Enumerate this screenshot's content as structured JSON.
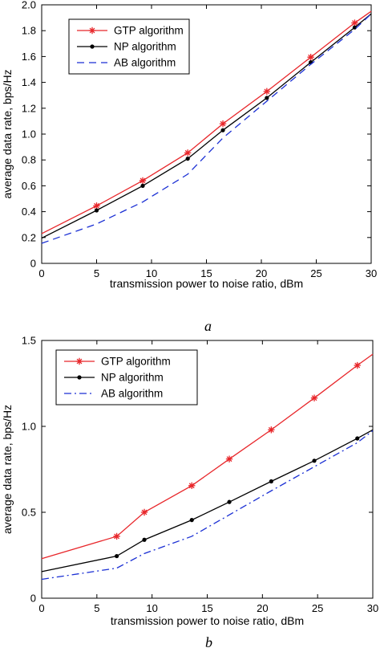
{
  "chart_data": [
    {
      "type": "line",
      "panel_label": "a",
      "xlabel": "transmission power to noise ratio, dBm",
      "ylabel": "average data rate, bps/Hz",
      "xlim": [
        0,
        30
      ],
      "ylim": [
        0,
        2.0
      ],
      "x_ticks": [
        0,
        5,
        10,
        15,
        20,
        25,
        30
      ],
      "x_tick_labels": [
        "0",
        "5",
        "10",
        "15",
        "20",
        "25",
        "30"
      ],
      "y_ticks": [
        0,
        0.2,
        0.4,
        0.6,
        0.8,
        1.0,
        1.2,
        1.4,
        1.6,
        1.8,
        2.0
      ],
      "y_tick_labels": [
        "0",
        "0.2",
        "0.4",
        "0.6",
        "0.8",
        "1.0",
        "1.2",
        "1.4",
        "1.6",
        "1.8",
        "2.0"
      ],
      "grid": false,
      "legend_position": "top-left",
      "series": [
        {
          "name": "GTP algorithm",
          "color": "#e8262a",
          "marker": "star",
          "dash": "solid",
          "x": [
            0,
            5,
            9.2,
            13.3,
            16.5,
            20.5,
            24.5,
            28.5,
            30
          ],
          "y": [
            0.23,
            0.445,
            0.64,
            0.855,
            1.08,
            1.33,
            1.595,
            1.86,
            1.95
          ]
        },
        {
          "name": "NP algorithm",
          "color": "#000000",
          "marker": "dot",
          "dash": "solid",
          "x": [
            0,
            5,
            9.2,
            13.3,
            16.5,
            20.5,
            24.5,
            28.5,
            30
          ],
          "y": [
            0.195,
            0.41,
            0.6,
            0.81,
            1.03,
            1.28,
            1.555,
            1.825,
            1.93
          ]
        },
        {
          "name": "AB algorithm",
          "color": "#1a2fd4",
          "marker": "none",
          "dash": "dashed",
          "x": [
            0,
            5,
            9.2,
            13.3,
            16.5,
            20.5,
            24.5,
            28.5,
            30
          ],
          "y": [
            0.155,
            0.305,
            0.475,
            0.69,
            0.97,
            1.255,
            1.54,
            1.81,
            1.93
          ]
        }
      ]
    },
    {
      "type": "line",
      "panel_label": "b",
      "xlabel": "transmission power to noise ratio, dBm",
      "ylabel": "average data rate, bps/Hz",
      "xlim": [
        0,
        30
      ],
      "ylim": [
        0,
        1.5
      ],
      "x_ticks": [
        0,
        5,
        10,
        15,
        20,
        25,
        30
      ],
      "x_tick_labels": [
        "0",
        "5",
        "10",
        "15",
        "20",
        "25",
        "30"
      ],
      "y_ticks": [
        0,
        0.5,
        1.0,
        1.5
      ],
      "y_tick_labels": [
        "0",
        "0.5",
        "1.0",
        "1.5"
      ],
      "grid": false,
      "legend_position": "top-left",
      "series": [
        {
          "name": "GTP algorithm",
          "color": "#e8262a",
          "marker": "star",
          "dash": "solid",
          "x": [
            0,
            6.8,
            9.3,
            13.6,
            17,
            20.8,
            24.7,
            28.6,
            30
          ],
          "y": [
            0.23,
            0.36,
            0.5,
            0.655,
            0.81,
            0.98,
            1.165,
            1.355,
            1.42
          ]
        },
        {
          "name": "NP algorithm",
          "color": "#000000",
          "marker": "dot",
          "dash": "solid",
          "x": [
            0,
            6.8,
            9.3,
            13.6,
            17,
            20.8,
            24.7,
            28.6,
            30
          ],
          "y": [
            0.155,
            0.245,
            0.34,
            0.455,
            0.56,
            0.68,
            0.8,
            0.93,
            0.98
          ]
        },
        {
          "name": "AB algorithm",
          "color": "#1a2fd4",
          "marker": "none",
          "dash": "dashdot",
          "x": [
            0,
            6.8,
            9.3,
            13.6,
            17,
            20.8,
            24.7,
            28.6,
            30
          ],
          "y": [
            0.11,
            0.175,
            0.26,
            0.36,
            0.485,
            0.625,
            0.765,
            0.905,
            0.975
          ]
        }
      ]
    }
  ]
}
